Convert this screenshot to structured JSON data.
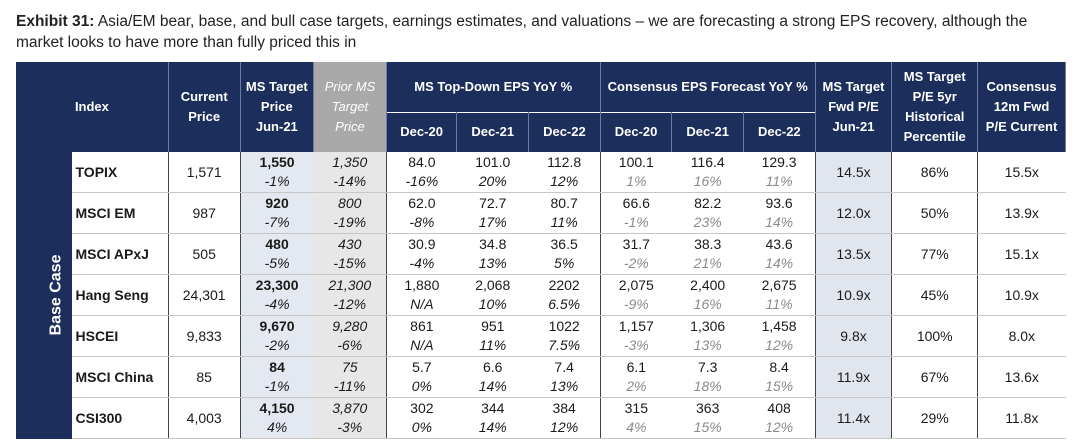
{
  "caption": {
    "exhibit": "Exhibit 31:",
    "text": "Asia/EM bear, base, and bull case targets, earnings estimates, and valuations – we are forecasting a strong EPS recovery, although the market looks to have more than fully priced this in"
  },
  "headers": {
    "index": "Index",
    "current_price": [
      "Current",
      "Price"
    ],
    "ms_target": [
      "MS Target",
      "Price",
      "Jun-21"
    ],
    "prior_ms": [
      "Prior MS",
      "Target",
      "Price"
    ],
    "topdown_group": "MS Top-Down EPS YoY %",
    "consensus_group": "Consensus EPS Forecast YoY %",
    "periods": [
      "Dec-20",
      "Dec-21",
      "Dec-22"
    ],
    "ms_fwd_pe": [
      "MS Target",
      "Fwd P/E",
      "Jun-21"
    ],
    "pe_percentile": [
      "MS Target",
      "P/E 5yr",
      "Historical",
      "Percentile"
    ],
    "consensus_pe": [
      "Consensus",
      "12m Fwd",
      "P/E Current"
    ]
  },
  "side_label": "Base Case",
  "rows": [
    {
      "index": "TOPIX",
      "current": "1,571",
      "ms_target": "1,550",
      "ms_pct": "-1%",
      "prior": "1,350",
      "prior_pct": "-14%",
      "td": [
        [
          "84.0",
          "-16%"
        ],
        [
          "101.0",
          "20%"
        ],
        [
          "112.8",
          "12%"
        ]
      ],
      "cons": [
        [
          "100.1",
          "1%"
        ],
        [
          "116.4",
          "16%"
        ],
        [
          "129.3",
          "11%"
        ]
      ],
      "fwd_pe": "14.5x",
      "percentile": "86%",
      "cons_pe": "15.5x"
    },
    {
      "index": "MSCI EM",
      "current": "987",
      "ms_target": "920",
      "ms_pct": "-7%",
      "prior": "800",
      "prior_pct": "-19%",
      "td": [
        [
          "62.0",
          "-8%"
        ],
        [
          "72.7",
          "17%"
        ],
        [
          "80.7",
          "11%"
        ]
      ],
      "cons": [
        [
          "66.6",
          "-1%"
        ],
        [
          "82.2",
          "23%"
        ],
        [
          "93.6",
          "14%"
        ]
      ],
      "fwd_pe": "12.0x",
      "percentile": "50%",
      "cons_pe": "13.9x"
    },
    {
      "index": "MSCI APxJ",
      "current": "505",
      "ms_target": "480",
      "ms_pct": "-5%",
      "prior": "430",
      "prior_pct": "-15%",
      "td": [
        [
          "30.9",
          "-4%"
        ],
        [
          "34.8",
          "13%"
        ],
        [
          "36.5",
          "5%"
        ]
      ],
      "cons": [
        [
          "31.7",
          "-2%"
        ],
        [
          "38.3",
          "21%"
        ],
        [
          "43.6",
          "14%"
        ]
      ],
      "fwd_pe": "13.5x",
      "percentile": "77%",
      "cons_pe": "15.1x"
    },
    {
      "index": "Hang Seng",
      "current": "24,301",
      "ms_target": "23,300",
      "ms_pct": "-4%",
      "prior": "21,300",
      "prior_pct": "-12%",
      "td": [
        [
          "1,880",
          "N/A"
        ],
        [
          "2,068",
          "10%"
        ],
        [
          "2202",
          "6.5%"
        ]
      ],
      "cons": [
        [
          "2,075",
          "-9%"
        ],
        [
          "2,400",
          "16%"
        ],
        [
          "2,675",
          "11%"
        ]
      ],
      "fwd_pe": "10.9x",
      "percentile": "45%",
      "cons_pe": "10.9x"
    },
    {
      "index": "HSCEI",
      "current": "9,833",
      "ms_target": "9,670",
      "ms_pct": "-2%",
      "prior": "9,280",
      "prior_pct": "-6%",
      "td": [
        [
          "861",
          "N/A"
        ],
        [
          "951",
          "11%"
        ],
        [
          "1022",
          "7.5%"
        ]
      ],
      "cons": [
        [
          "1,157",
          "-3%"
        ],
        [
          "1,306",
          "13%"
        ],
        [
          "1,458",
          "12%"
        ]
      ],
      "fwd_pe": "9.8x",
      "percentile": "100%",
      "cons_pe": "8.0x"
    },
    {
      "index": "MSCI China",
      "current": "85",
      "ms_target": "84",
      "ms_pct": "-1%",
      "prior": "75",
      "prior_pct": "-11%",
      "td": [
        [
          "5.7",
          "0%"
        ],
        [
          "6.6",
          "14%"
        ],
        [
          "7.4",
          "13%"
        ]
      ],
      "cons": [
        [
          "6.1",
          "2%"
        ],
        [
          "7.3",
          "18%"
        ],
        [
          "8.4",
          "15%"
        ]
      ],
      "fwd_pe": "11.9x",
      "percentile": "67%",
      "cons_pe": "13.6x"
    },
    {
      "index": "CSI300",
      "current": "4,003",
      "ms_target": "4,150",
      "ms_pct": "4%",
      "prior": "3,870",
      "prior_pct": "-3%",
      "td": [
        [
          "302",
          "0%"
        ],
        [
          "344",
          "14%"
        ],
        [
          "384",
          "12%"
        ]
      ],
      "cons": [
        [
          "315",
          "4%"
        ],
        [
          "363",
          "15%"
        ],
        [
          "408",
          "12%"
        ]
      ],
      "fwd_pe": "11.4x",
      "percentile": "29%",
      "cons_pe": "11.8x"
    }
  ]
}
